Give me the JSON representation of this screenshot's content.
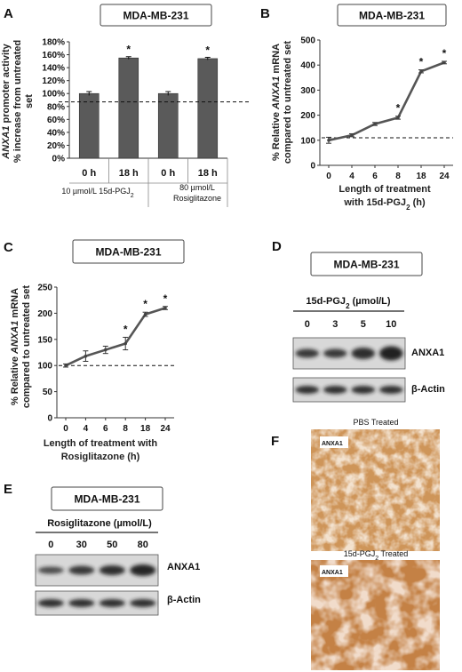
{
  "panels": {
    "A": {
      "letter": "A"
    },
    "B": {
      "letter": "B"
    },
    "C": {
      "letter": "C"
    },
    "D": {
      "letter": "D"
    },
    "E": {
      "letter": "E"
    },
    "F": {
      "letter": "F"
    }
  },
  "chart_data": [
    {
      "panel": "A",
      "type": "bar",
      "title": "MDA-MB-231",
      "ylabel_line1": "ANXA1 promoter activity",
      "ylabel_line2": "% increase from untreated",
      "ylabel_line3": "set",
      "yticks": [
        "0%",
        "20%",
        "40%",
        "60%",
        "80%",
        "100%",
        "120%",
        "140%",
        "160%",
        "180%"
      ],
      "ylim": [
        0,
        180
      ],
      "categories": [
        "0 h",
        "18 h",
        "0 h",
        "18 h"
      ],
      "values": [
        100,
        155,
        100,
        154
      ],
      "errors": [
        3,
        2,
        3,
        2
      ],
      "significant": [
        false,
        true,
        false,
        true
      ],
      "star": "*",
      "reference_line": 87,
      "groups": [
        {
          "label_line1": "10 µmol/L 15d-PGJ",
          "sub": "2",
          "label_line2": ""
        },
        {
          "label_line1": "80 µmol/L",
          "sub": "",
          "label_line2": "Rosiglitazone"
        }
      ],
      "bar_color": "#5a5a5a"
    },
    {
      "panel": "B",
      "type": "line",
      "title": "MDA-MB-231",
      "ylabel_line1": "% Relative ANXA1 mRNA",
      "ylabel_line2": "compared to untreated set",
      "xlabel_line1": "Length of treatment",
      "xlabel_line2_pre": "with 15d-PGJ",
      "xlabel_line2_sub": "2",
      "xlabel_line2_post": " (h)",
      "categories": [
        "0",
        "4",
        "6",
        "8",
        "18",
        "24"
      ],
      "values": [
        100,
        120,
        165,
        190,
        375,
        410
      ],
      "errors": [
        12,
        6,
        6,
        6,
        6,
        5
      ],
      "significant": [
        false,
        false,
        false,
        true,
        true,
        true
      ],
      "star": "*",
      "yticks": [
        "0",
        "100",
        "200",
        "300",
        "400",
        "500"
      ],
      "ylim": [
        0,
        500
      ],
      "reference_line": 110
    },
    {
      "panel": "C",
      "type": "line",
      "title": "MDA-MB-231",
      "ylabel_line1": "% Relative ANXA1 mRNA",
      "ylabel_line2": "compared to untreated set",
      "xlabel_line1": "Length of treatment with",
      "xlabel_line2_pre": "Rosiglitazone (h)",
      "xlabel_line2_sub": "",
      "xlabel_line2_post": "",
      "categories": [
        "0",
        "4",
        "6",
        "8",
        "18",
        "24"
      ],
      "values": [
        100,
        118,
        130,
        142,
        198,
        210
      ],
      "errors": [
        3,
        10,
        7,
        12,
        4,
        3
      ],
      "significant": [
        false,
        false,
        false,
        true,
        true,
        true
      ],
      "star": "*",
      "yticks": [
        "0",
        "50",
        "100",
        "150",
        "200",
        "250"
      ],
      "ylim": [
        0,
        250
      ],
      "reference_line": 100
    }
  ],
  "blots": {
    "D": {
      "title": "MDA-MB-231",
      "treatment_pre": "15d-PGJ",
      "treatment_sub": "2",
      "treatment_post": " (µmol/L)",
      "doses": [
        "0",
        "3",
        "5",
        "10"
      ],
      "band_labels": [
        "ANXA1",
        "β-Actin"
      ]
    },
    "E": {
      "title": "MDA-MB-231",
      "treatment_pre": "Rosiglitazone (µmol/L)",
      "treatment_sub": "",
      "treatment_post": "",
      "doses": [
        "0",
        "30",
        "50",
        "80"
      ],
      "band_labels": [
        "ANXA1",
        "β-Actin"
      ]
    }
  },
  "histology": {
    "top_caption": "PBS Treated",
    "bottom_caption_pre": "15d-PGJ",
    "bottom_caption_sub": "2",
    "bottom_caption_post": " Treated",
    "stain_label": "ANXA1"
  }
}
